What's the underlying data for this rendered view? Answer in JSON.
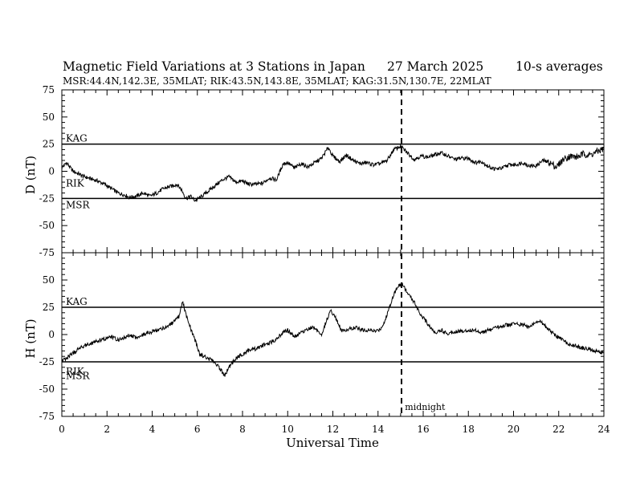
{
  "header": {
    "title": "Magnetic Field Variations at 3 Stations in Japan",
    "date": "27 March   2025",
    "averaging": "10-s averages",
    "stations": "MSR:44.4N,142.3E, 35MLAT;  RIK:43.5N,143.8E, 35MLAT;  KAG:31.5N,130.7E, 22MLAT"
  },
  "chart_data": [
    {
      "type": "line",
      "ylabel": "D (nT)",
      "xlabel": "",
      "xlim": [
        0,
        24
      ],
      "ylim": [
        -75,
        75
      ],
      "yticks": [
        75,
        50,
        25,
        0,
        -25,
        -50,
        -75
      ],
      "baselines": [
        {
          "name": "KAG",
          "y": 25
        },
        {
          "name": "RIK",
          "y": -5
        },
        {
          "name": "MSR",
          "y": -25
        }
      ],
      "series": [
        {
          "x": [
            0,
            0.2,
            0.5,
            0.8,
            1.0,
            1.3,
            1.6,
            1.9,
            2.2,
            2.5,
            2.8,
            3.0,
            3.3,
            3.6,
            3.9,
            4.2,
            4.5,
            4.8,
            5.1,
            5.3,
            5.5,
            5.7,
            5.9,
            6.2,
            6.5,
            6.8,
            7.1,
            7.4,
            7.7,
            8.0,
            8.3,
            8.6,
            8.9,
            9.2,
            9.5,
            9.8,
            10.0,
            10.3,
            10.6,
            10.9,
            11.2,
            11.5,
            11.8,
            12.0,
            12.3,
            12.6,
            12.9,
            13.2,
            13.5,
            13.8,
            14.1,
            14.4,
            14.7,
            15.0,
            15.3,
            15.6,
            15.9,
            16.2,
            16.5,
            16.8,
            17.1,
            17.4,
            17.7,
            18.0,
            18.3,
            18.6,
            18.9,
            19.2,
            19.5,
            19.8,
            20.1,
            20.4,
            20.7,
            21.0,
            21.3,
            21.6,
            21.9,
            22.2,
            22.5,
            22.8,
            23.1,
            23.4,
            23.7,
            24.0
          ],
          "values": [
            3,
            8,
            0,
            -3,
            -5,
            -7,
            -9,
            -12,
            -16,
            -20,
            -22,
            -24,
            -23,
            -20,
            -23,
            -20,
            -16,
            -14,
            -12,
            -17,
            -25,
            -23,
            -27,
            -23,
            -18,
            -13,
            -8,
            -5,
            -10,
            -9,
            -12,
            -12,
            -11,
            -6,
            -8,
            7,
            8,
            3,
            7,
            4,
            8,
            12,
            22,
            14,
            9,
            15,
            10,
            7,
            8,
            6,
            7,
            10,
            20,
            23,
            17,
            11,
            14,
            13,
            15,
            17,
            14,
            11,
            12,
            12,
            8,
            9,
            4,
            2,
            3,
            6,
            6,
            8,
            5,
            5,
            10,
            8,
            4,
            11,
            14,
            13,
            16,
            15,
            18,
            21
          ]
        }
      ]
    },
    {
      "type": "line",
      "ylabel": "H (nT)",
      "xlabel": "Universal Time",
      "xlim": [
        0,
        24
      ],
      "ylim": [
        -75,
        75
      ],
      "xticks": [
        0,
        2,
        4,
        6,
        8,
        10,
        12,
        14,
        16,
        18,
        20,
        22,
        24
      ],
      "yticks": [
        50,
        25,
        0,
        -25,
        -50,
        -75
      ],
      "baselines": [
        {
          "name": "KAG",
          "y": 25
        },
        {
          "name": "RIK",
          "y": -28
        },
        {
          "name": "MSR",
          "y": -32
        }
      ],
      "annotations": [
        {
          "text": "midnight",
          "x": 15.05,
          "y": -69
        }
      ],
      "series": [
        {
          "x": [
            0,
            0.2,
            0.4,
            0.6,
            0.8,
            1.0,
            1.3,
            1.6,
            1.9,
            2.2,
            2.5,
            2.8,
            3.0,
            3.3,
            3.6,
            3.9,
            4.2,
            4.5,
            4.8,
            5.0,
            5.2,
            5.35,
            5.5,
            5.7,
            5.9,
            6.1,
            6.3,
            6.5,
            6.8,
            7.1,
            7.2,
            7.4,
            7.7,
            8.0,
            8.3,
            8.6,
            8.9,
            9.2,
            9.5,
            9.8,
            10.0,
            10.3,
            10.6,
            10.9,
            11.1,
            11.3,
            11.5,
            11.7,
            11.9,
            12.1,
            12.4,
            12.7,
            13.0,
            13.3,
            13.6,
            13.9,
            14.1,
            14.3,
            14.5,
            14.7,
            14.9,
            15.1,
            15.3,
            15.6,
            15.9,
            16.2,
            16.5,
            16.8,
            17.1,
            17.4,
            17.7,
            18.0,
            18.3,
            18.6,
            18.9,
            19.2,
            19.5,
            19.8,
            20.1,
            20.4,
            20.7,
            21.0,
            21.2,
            21.5,
            21.8,
            22.1,
            22.4,
            22.7,
            23.0,
            23.3,
            23.6,
            24.0
          ],
          "values": [
            -24,
            -22,
            -18,
            -16,
            -12,
            -10,
            -8,
            -6,
            -4,
            -2,
            -5,
            -3,
            0,
            -3,
            0,
            2,
            4,
            6,
            9,
            12,
            17,
            30,
            18,
            6,
            -5,
            -18,
            -20,
            -22,
            -26,
            -34,
            -38,
            -30,
            -22,
            -18,
            -14,
            -13,
            -10,
            -8,
            -4,
            2,
            4,
            -2,
            2,
            5,
            7,
            4,
            -1,
            12,
            22,
            16,
            3,
            5,
            7,
            4,
            4,
            3,
            5,
            12,
            25,
            37,
            45,
            46,
            38,
            30,
            18,
            10,
            2,
            4,
            1,
            3,
            3,
            4,
            4,
            2,
            4,
            6,
            8,
            9,
            10,
            9,
            7,
            11,
            12,
            6,
            0,
            -4,
            -8,
            -10,
            -12,
            -13,
            -15,
            -17
          ]
        }
      ]
    }
  ]
}
